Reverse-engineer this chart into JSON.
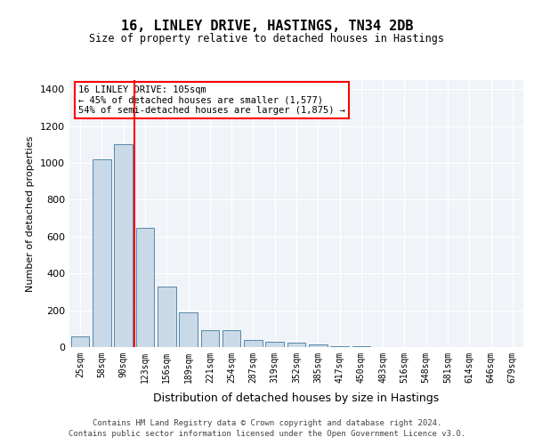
{
  "title1": "16, LINLEY DRIVE, HASTINGS, TN34 2DB",
  "title2": "Size of property relative to detached houses in Hastings",
  "xlabel": "Distribution of detached houses by size in Hastings",
  "ylabel": "Number of detached properties",
  "categories": [
    "25sqm",
    "58sqm",
    "90sqm",
    "123sqm",
    "156sqm",
    "189sqm",
    "221sqm",
    "254sqm",
    "287sqm",
    "319sqm",
    "352sqm",
    "385sqm",
    "417sqm",
    "450sqm",
    "483sqm",
    "516sqm",
    "548sqm",
    "581sqm",
    "614sqm",
    "646sqm",
    "679sqm"
  ],
  "values": [
    60,
    1020,
    1100,
    650,
    330,
    190,
    90,
    90,
    40,
    30,
    25,
    15,
    5,
    3,
    2,
    1,
    1,
    0,
    0,
    0,
    0
  ],
  "bar_color": "#c9d9e8",
  "bar_edge_color": "#5588aa",
  "redline_x": 2.5,
  "annotation_text": "16 LINLEY DRIVE: 105sqm\n← 45% of detached houses are smaller (1,577)\n54% of semi-detached houses are larger (1,875) →",
  "footnote1": "Contains HM Land Registry data © Crown copyright and database right 2024.",
  "footnote2": "Contains public sector information licensed under the Open Government Licence v3.0.",
  "bg_color": "#f0f4f8",
  "plot_bg_color": "#f0f4f8",
  "ylim": [
    0,
    1450
  ],
  "yticks": [
    0,
    200,
    400,
    600,
    800,
    1000,
    1200,
    1400
  ]
}
